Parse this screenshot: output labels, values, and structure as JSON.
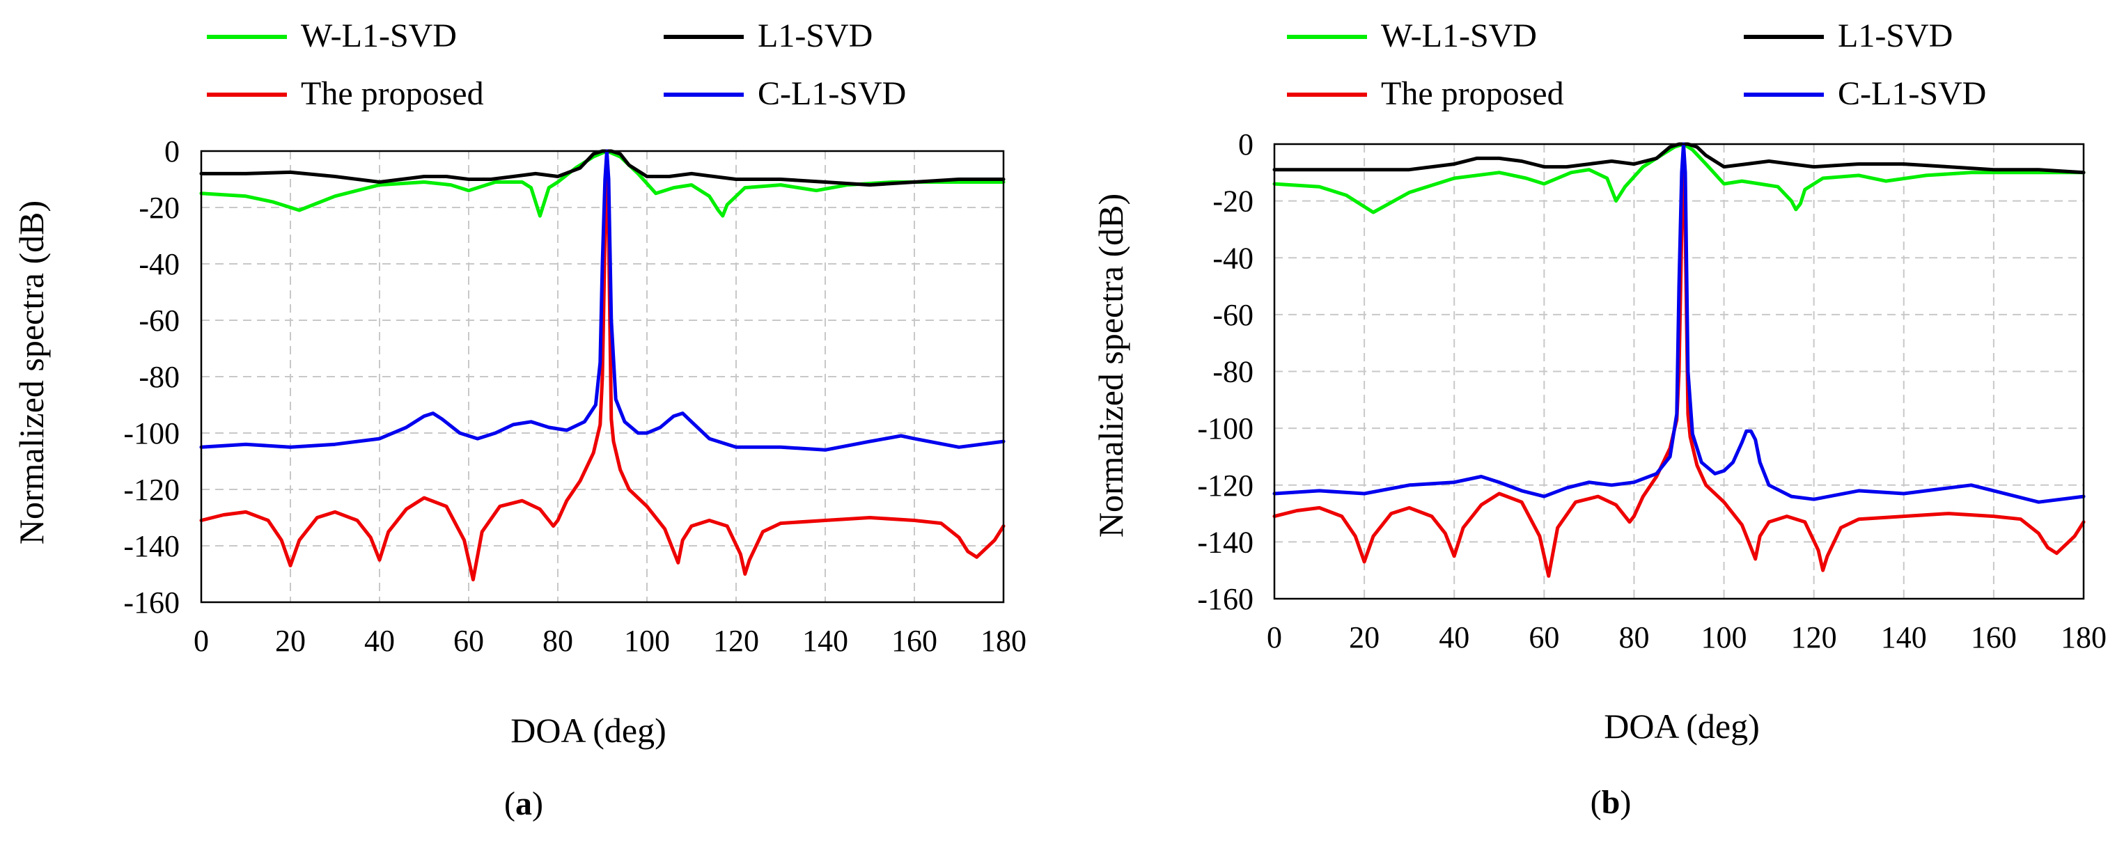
{
  "chart_data": [
    {
      "type": "line",
      "caption_open": "(",
      "caption_letter": "a",
      "caption_close": ")",
      "xlabel": "DOA (deg)",
      "ylabel": "Normalized spectra (dB)",
      "xlim": [
        0,
        180
      ],
      "ylim": [
        -160,
        0
      ],
      "xticks": [
        0,
        20,
        40,
        60,
        80,
        100,
        120,
        140,
        160,
        180
      ],
      "yticks": [
        0,
        -20,
        -40,
        -60,
        -80,
        -100,
        -120,
        -140,
        -160
      ],
      "grid": true,
      "legend_position": "top",
      "series": [
        {
          "name": "W-L1-SVD",
          "color": "#00ee00",
          "x": [
            0,
            10,
            16,
            22,
            30,
            40,
            50,
            56,
            60,
            66,
            72,
            74,
            76,
            78,
            80,
            84,
            88,
            91,
            94,
            98,
            102,
            106,
            110,
            114,
            116,
            117,
            118,
            122,
            130,
            138,
            145,
            155,
            170,
            180
          ],
          "y": [
            -15,
            -16,
            -18,
            -21,
            -16,
            -12,
            -11,
            -12,
            -14,
            -11,
            -11,
            -13,
            -23,
            -13,
            -11,
            -6,
            -2,
            0,
            -2,
            -8,
            -15,
            -13,
            -12,
            -16,
            -21,
            -23,
            -19,
            -13,
            -12,
            -14,
            -12,
            -11,
            -11,
            -11
          ]
        },
        {
          "name": "L1-SVD",
          "color": "#000000",
          "x": [
            0,
            10,
            20,
            30,
            40,
            45,
            50,
            55,
            60,
            65,
            70,
            75,
            80,
            85,
            88,
            90,
            91,
            92,
            94,
            96,
            100,
            105,
            110,
            115,
            120,
            130,
            140,
            150,
            160,
            170,
            180
          ],
          "y": [
            -8,
            -8,
            -7.5,
            -9,
            -11,
            -10,
            -9,
            -9,
            -10,
            -10,
            -9,
            -8,
            -9,
            -6,
            -1,
            0,
            0,
            0,
            -1,
            -5,
            -9,
            -9,
            -8,
            -9,
            -10,
            -10,
            -11,
            -12,
            -11,
            -10,
            -10
          ]
        },
        {
          "name": "The proposed",
          "color": "#ee0000",
          "x": [
            0,
            5,
            10,
            15,
            18,
            20,
            22,
            26,
            30,
            35,
            38,
            40,
            42,
            46,
            50,
            55,
            59,
            61,
            63,
            67,
            72,
            76,
            78,
            79,
            80,
            82,
            85,
            88,
            89.5,
            90,
            90.6,
            91,
            91.4,
            92,
            92.5,
            94,
            96,
            100,
            104,
            106,
            107,
            108,
            110,
            114,
            118,
            121,
            122,
            123,
            126,
            130,
            140,
            150,
            160,
            166,
            170,
            172,
            174,
            178,
            180
          ],
          "y": [
            -131,
            -129,
            -128,
            -131,
            -138,
            -147,
            -138,
            -130,
            -128,
            -131,
            -137,
            -145,
            -135,
            -127,
            -123,
            -126,
            -138,
            -152,
            -135,
            -126,
            -124,
            -127,
            -131,
            -133,
            -131,
            -124,
            -117,
            -107,
            -97,
            -80,
            -30,
            0,
            -30,
            -95,
            -103,
            -113,
            -120,
            -126,
            -134,
            -142,
            -146,
            -138,
            -133,
            -131,
            -133,
            -143,
            -150,
            -145,
            -135,
            -132,
            -131,
            -130,
            -131,
            -132,
            -137,
            -142,
            -144,
            -138,
            -133
          ]
        },
        {
          "name": "C-L1-SVD",
          "color": "#0000ee",
          "x": [
            0,
            10,
            20,
            30,
            40,
            46,
            50,
            52,
            54,
            58,
            62,
            66,
            70,
            74,
            78,
            82,
            86,
            88.5,
            89.5,
            90,
            90.6,
            91,
            91.4,
            92,
            93,
            95,
            98,
            100,
            103,
            106,
            108,
            110,
            114,
            120,
            130,
            140,
            150,
            157,
            160,
            170,
            180
          ],
          "y": [
            -105,
            -104,
            -105,
            -104,
            -102,
            -98,
            -94,
            -93,
            -95,
            -100,
            -102,
            -100,
            -97,
            -96,
            -98,
            -99,
            -96,
            -90,
            -75,
            -40,
            -10,
            0,
            -10,
            -60,
            -88,
            -96,
            -100,
            -100,
            -98,
            -94,
            -93,
            -96,
            -102,
            -105,
            -105,
            -106,
            -103,
            -101,
            -102,
            -105,
            -103
          ]
        }
      ]
    },
    {
      "type": "line",
      "caption_open": "(",
      "caption_letter": "b",
      "caption_close": ")",
      "xlabel": "DOA (deg)",
      "ylabel": "Normalized spectra (dB)",
      "xlim": [
        0,
        180
      ],
      "ylim": [
        -160,
        0
      ],
      "xticks": [
        0,
        20,
        40,
        60,
        80,
        100,
        120,
        140,
        160,
        180
      ],
      "yticks": [
        0,
        -20,
        -40,
        -60,
        -80,
        -100,
        -120,
        -140,
        -160
      ],
      "grid": true,
      "legend_position": "top",
      "series": [
        {
          "name": "W-L1-SVD",
          "color": "#00ee00",
          "x": [
            0,
            10,
            16,
            22,
            30,
            40,
            50,
            56,
            60,
            66,
            70,
            74,
            76,
            78,
            82,
            86,
            89,
            91,
            93,
            96,
            100,
            104,
            108,
            112,
            115,
            116,
            117,
            118,
            122,
            130,
            136,
            145,
            155,
            165,
            180
          ],
          "y": [
            -14,
            -15,
            -18,
            -24,
            -17,
            -12,
            -10,
            -12,
            -14,
            -10,
            -9,
            -12,
            -20,
            -15,
            -8,
            -4,
            -1,
            0,
            -2,
            -7,
            -14,
            -13,
            -14,
            -15,
            -20,
            -23,
            -21,
            -16,
            -12,
            -11,
            -13,
            -11,
            -10,
            -10,
            -10
          ]
        },
        {
          "name": "L1-SVD",
          "color": "#000000",
          "x": [
            0,
            10,
            20,
            30,
            40,
            45,
            50,
            55,
            60,
            65,
            70,
            75,
            80,
            85,
            88,
            90,
            91,
            92,
            94,
            96,
            100,
            105,
            110,
            115,
            120,
            130,
            140,
            150,
            160,
            170,
            180
          ],
          "y": [
            -9,
            -9,
            -9,
            -9,
            -7,
            -5,
            -5,
            -6,
            -8,
            -8,
            -7,
            -6,
            -7,
            -5,
            -1,
            0,
            0,
            0,
            -1,
            -4,
            -8,
            -7,
            -6,
            -7,
            -8,
            -7,
            -7,
            -8,
            -9,
            -9,
            -10
          ]
        },
        {
          "name": "The proposed",
          "color": "#ee0000",
          "x": [
            0,
            5,
            10,
            15,
            18,
            20,
            22,
            26,
            30,
            35,
            38,
            40,
            42,
            46,
            50,
            55,
            59,
            61,
            63,
            67,
            72,
            76,
            78,
            79,
            80,
            82,
            85,
            88,
            89.5,
            90,
            90.6,
            91,
            91.4,
            92,
            92.5,
            94,
            96,
            100,
            104,
            106,
            107,
            108,
            110,
            114,
            118,
            121,
            122,
            123,
            126,
            130,
            140,
            150,
            160,
            166,
            170,
            172,
            174,
            178,
            180
          ],
          "y": [
            -131,
            -129,
            -128,
            -131,
            -138,
            -147,
            -138,
            -130,
            -128,
            -131,
            -137,
            -145,
            -135,
            -127,
            -123,
            -126,
            -138,
            -152,
            -135,
            -126,
            -124,
            -127,
            -131,
            -133,
            -131,
            -124,
            -117,
            -107,
            -97,
            -80,
            -30,
            0,
            -30,
            -95,
            -103,
            -113,
            -120,
            -126,
            -134,
            -142,
            -146,
            -138,
            -133,
            -131,
            -133,
            -143,
            -150,
            -145,
            -135,
            -132,
            -131,
            -130,
            -131,
            -132,
            -137,
            -142,
            -144,
            -138,
            -133
          ]
        },
        {
          "name": "C-L1-SVD",
          "color": "#0000ee",
          "x": [
            0,
            10,
            20,
            30,
            40,
            46,
            50,
            55,
            60,
            65,
            70,
            75,
            80,
            85,
            88,
            89.5,
            90,
            90.6,
            91,
            91.4,
            92,
            93,
            95,
            98,
            100,
            102,
            104,
            105,
            106,
            107,
            108,
            110,
            115,
            120,
            130,
            140,
            150,
            155,
            160,
            170,
            180
          ],
          "y": [
            -123,
            -122,
            -123,
            -120,
            -119,
            -117,
            -119,
            -122,
            -124,
            -121,
            -119,
            -120,
            -119,
            -116,
            -110,
            -95,
            -50,
            -10,
            0,
            -10,
            -80,
            -102,
            -112,
            -116,
            -115,
            -112,
            -105,
            -101,
            -101,
            -104,
            -112,
            -120,
            -124,
            -125,
            -122,
            -123,
            -121,
            -120,
            -122,
            -126,
            -124
          ]
        }
      ]
    }
  ]
}
